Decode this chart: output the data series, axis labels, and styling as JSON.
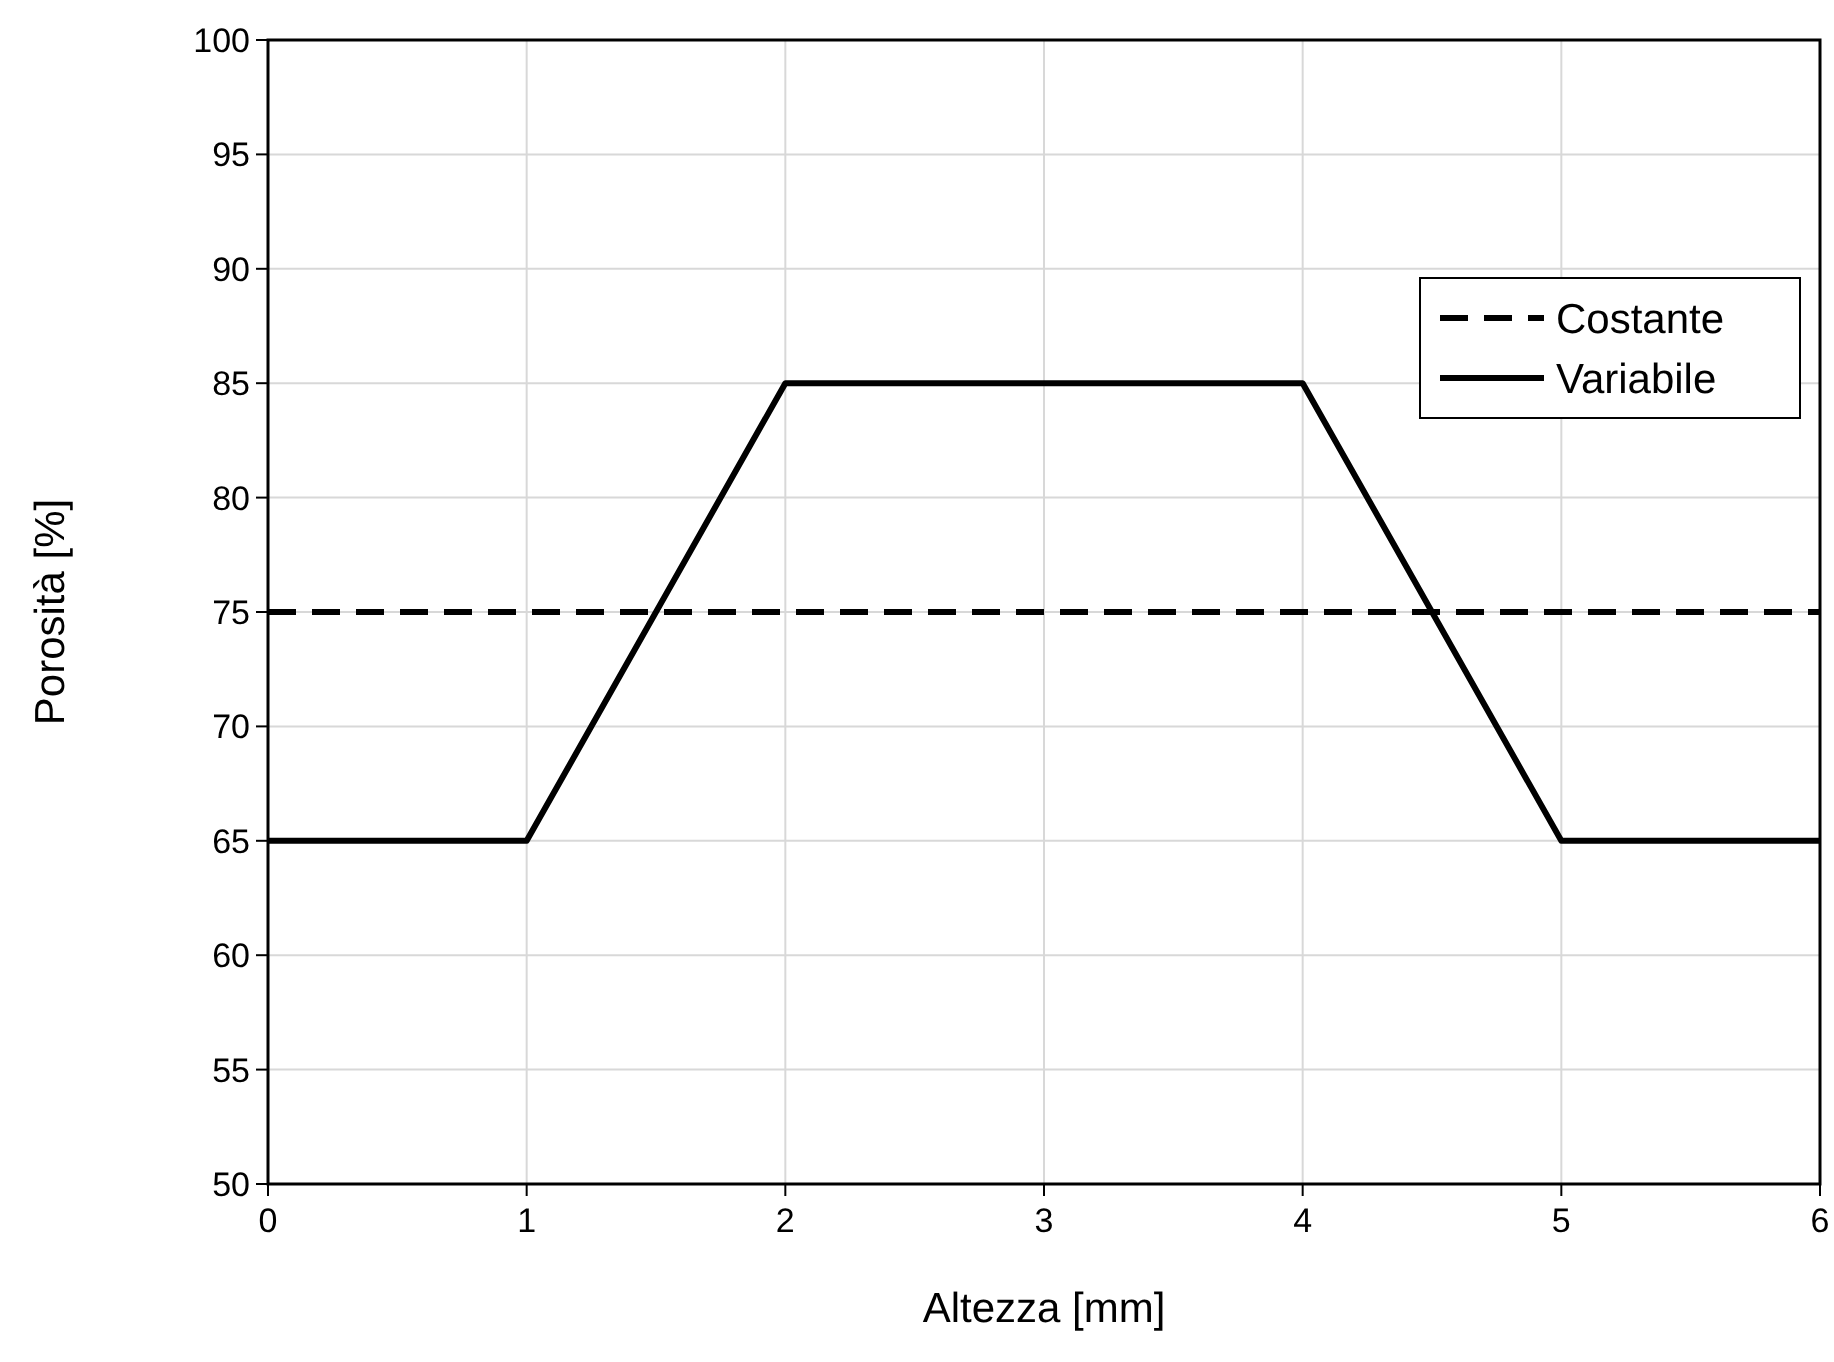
{
  "chart_data": {
    "type": "line",
    "xlabel": "Altezza [mm]",
    "ylabel": "Porosità [%]",
    "xlim": [
      0,
      6
    ],
    "xticks": [
      0,
      1,
      2,
      3,
      4,
      5,
      6
    ],
    "ylim": [
      50,
      100
    ],
    "yticks": [
      50,
      55,
      60,
      65,
      70,
      75,
      80,
      85,
      90,
      95,
      100
    ],
    "grid": true,
    "legend": "top right",
    "marker": "none",
    "series": [
      {
        "name": "Costante",
        "color": "#000000",
        "line_style": "dashed",
        "x": [
          0,
          6
        ],
        "values": [
          75,
          75
        ]
      },
      {
        "name": "Variabile",
        "color": "#000000",
        "line_style": "solid",
        "x": [
          0,
          1,
          2,
          4,
          5,
          6
        ],
        "values": [
          65,
          65,
          85,
          85,
          65,
          65
        ]
      }
    ]
  }
}
